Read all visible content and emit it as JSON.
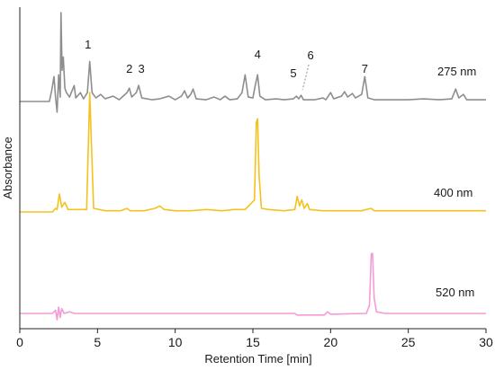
{
  "chart_data": {
    "type": "line",
    "title": "",
    "xlabel": "Retention Time [min]",
    "ylabel": "Absorbance",
    "xlim": [
      0,
      30
    ],
    "x_ticks": [
      0,
      5,
      10,
      15,
      20,
      25,
      30
    ],
    "grid": false,
    "legend": "none",
    "y_tick_labels_shown": false,
    "series": [
      {
        "name": "275 nm",
        "color": "#8e8e8e",
        "baseline": 0.0,
        "points": [
          [
            0,
            0.0
          ],
          [
            1.9,
            0.0
          ],
          [
            2.05,
            0.12
          ],
          [
            2.2,
            0.28
          ],
          [
            2.3,
            0.05
          ],
          [
            2.4,
            -0.12
          ],
          [
            2.5,
            0.3
          ],
          [
            2.6,
            0.05
          ],
          [
            2.65,
            1.0
          ],
          [
            2.72,
            0.35
          ],
          [
            2.8,
            0.5
          ],
          [
            2.9,
            0.15
          ],
          [
            3.0,
            0.1
          ],
          [
            3.2,
            0.05
          ],
          [
            3.5,
            0.18
          ],
          [
            3.6,
            0.04
          ],
          [
            3.9,
            0.1
          ],
          [
            4.1,
            0.03
          ],
          [
            4.35,
            0.1
          ],
          [
            4.5,
            0.45
          ],
          [
            4.65,
            0.1
          ],
          [
            4.9,
            0.04
          ],
          [
            5.2,
            0.08
          ],
          [
            5.5,
            0.03
          ],
          [
            6.0,
            0.06
          ],
          [
            6.4,
            0.02
          ],
          [
            6.9,
            0.1
          ],
          [
            7.05,
            0.15
          ],
          [
            7.2,
            0.05
          ],
          [
            7.5,
            0.1
          ],
          [
            7.65,
            0.18
          ],
          [
            7.85,
            0.04
          ],
          [
            8.5,
            0.02
          ],
          [
            9.0,
            0.03
          ],
          [
            9.6,
            0.06
          ],
          [
            10.0,
            0.02
          ],
          [
            10.4,
            0.06
          ],
          [
            10.6,
            0.12
          ],
          [
            10.8,
            0.04
          ],
          [
            11.0,
            0.08
          ],
          [
            11.15,
            0.14
          ],
          [
            11.35,
            0.03
          ],
          [
            12.0,
            0.02
          ],
          [
            12.5,
            0.05
          ],
          [
            12.9,
            0.02
          ],
          [
            13.2,
            0.06
          ],
          [
            13.5,
            0.02
          ],
          [
            14.0,
            0.03
          ],
          [
            14.3,
            0.1
          ],
          [
            14.5,
            0.3
          ],
          [
            14.7,
            0.05
          ],
          [
            15.0,
            0.04
          ],
          [
            15.15,
            0.18
          ],
          [
            15.3,
            0.3
          ],
          [
            15.45,
            0.06
          ],
          [
            15.8,
            0.02
          ],
          [
            16.5,
            0.03
          ],
          [
            17.0,
            0.02
          ],
          [
            17.6,
            0.03
          ],
          [
            17.8,
            0.06
          ],
          [
            17.95,
            0.03
          ],
          [
            18.1,
            0.07
          ],
          [
            18.25,
            0.02
          ],
          [
            19.0,
            0.02
          ],
          [
            19.5,
            0.04
          ],
          [
            19.7,
            0.02
          ],
          [
            20.0,
            0.1
          ],
          [
            20.2,
            0.03
          ],
          [
            20.7,
            0.06
          ],
          [
            20.9,
            0.11
          ],
          [
            21.1,
            0.05
          ],
          [
            21.4,
            0.09
          ],
          [
            21.6,
            0.04
          ],
          [
            22.0,
            0.08
          ],
          [
            22.2,
            0.28
          ],
          [
            22.4,
            0.04
          ],
          [
            22.8,
            0.02
          ],
          [
            24.0,
            0.02
          ],
          [
            25.0,
            0.02
          ],
          [
            26.0,
            0.03
          ],
          [
            27.0,
            0.02
          ],
          [
            27.8,
            0.03
          ],
          [
            28.05,
            0.14
          ],
          [
            28.25,
            0.04
          ],
          [
            28.55,
            0.08
          ],
          [
            28.75,
            0.02
          ],
          [
            30,
            0.02
          ]
        ]
      },
      {
        "name": "400 nm",
        "color": "#f4c21f",
        "baseline": 0.0,
        "points": [
          [
            0,
            0.0
          ],
          [
            2.1,
            0.0
          ],
          [
            2.3,
            0.03
          ],
          [
            2.4,
            0.02
          ],
          [
            2.55,
            0.15
          ],
          [
            2.7,
            0.04
          ],
          [
            2.9,
            0.08
          ],
          [
            3.1,
            0.02
          ],
          [
            3.5,
            0.02
          ],
          [
            4.3,
            0.02
          ],
          [
            4.42,
            0.6
          ],
          [
            4.5,
            1.0
          ],
          [
            4.6,
            0.6
          ],
          [
            4.75,
            0.03
          ],
          [
            5.5,
            0.01
          ],
          [
            6.5,
            0.01
          ],
          [
            6.9,
            0.03
          ],
          [
            7.1,
            0.01
          ],
          [
            8.0,
            0.01
          ],
          [
            8.7,
            0.03
          ],
          [
            9.0,
            0.05
          ],
          [
            9.3,
            0.02
          ],
          [
            10.0,
            0.01
          ],
          [
            11.0,
            0.01
          ],
          [
            12.0,
            0.02
          ],
          [
            13.0,
            0.01
          ],
          [
            13.8,
            0.02
          ],
          [
            14.5,
            0.02
          ],
          [
            15.1,
            0.1
          ],
          [
            15.22,
            0.75
          ],
          [
            15.3,
            0.78
          ],
          [
            15.4,
            0.3
          ],
          [
            15.55,
            0.03
          ],
          [
            16.0,
            0.02
          ],
          [
            17.0,
            0.01
          ],
          [
            17.7,
            0.02
          ],
          [
            17.85,
            0.13
          ],
          [
            18.0,
            0.05
          ],
          [
            18.15,
            0.1
          ],
          [
            18.3,
            0.03
          ],
          [
            18.5,
            0.07
          ],
          [
            18.65,
            0.02
          ],
          [
            19.5,
            0.01
          ],
          [
            22.0,
            0.01
          ],
          [
            22.6,
            0.03
          ],
          [
            22.8,
            0.01
          ],
          [
            30,
            0.01
          ]
        ]
      },
      {
        "name": "520 nm",
        "color": "#f59bd6",
        "baseline": 0.0,
        "points": [
          [
            0,
            0.0
          ],
          [
            2.1,
            0.0
          ],
          [
            2.3,
            0.04
          ],
          [
            2.4,
            -0.08
          ],
          [
            2.5,
            0.08
          ],
          [
            2.6,
            -0.05
          ],
          [
            2.7,
            0.06
          ],
          [
            2.85,
            0.0
          ],
          [
            3.2,
            0.02
          ],
          [
            3.5,
            0.0
          ],
          [
            10.0,
            0.0
          ],
          [
            17.7,
            0.0
          ],
          [
            17.85,
            -0.02
          ],
          [
            18.5,
            -0.02
          ],
          [
            19.6,
            -0.02
          ],
          [
            19.8,
            0.02
          ],
          [
            20.0,
            -0.01
          ],
          [
            22.3,
            0.0
          ],
          [
            22.5,
            0.1
          ],
          [
            22.62,
            0.75
          ],
          [
            22.7,
            0.75
          ],
          [
            22.8,
            0.2
          ],
          [
            22.95,
            0.02
          ],
          [
            23.5,
            0.0
          ],
          [
            30,
            0.0
          ]
        ]
      }
    ],
    "annotations": [
      {
        "series": 0,
        "label": "1",
        "x": 4.5
      },
      {
        "series": 0,
        "label": "2",
        "x": 7.05
      },
      {
        "series": 0,
        "label": "3",
        "x": 7.65
      },
      {
        "series": 0,
        "label": "4",
        "x": 15.3
      },
      {
        "series": 0,
        "label": "5",
        "x": 17.95
      },
      {
        "series": 0,
        "label": "6",
        "x": 18.25
      },
      {
        "series": 0,
        "label": "7",
        "x": 22.2
      }
    ]
  }
}
